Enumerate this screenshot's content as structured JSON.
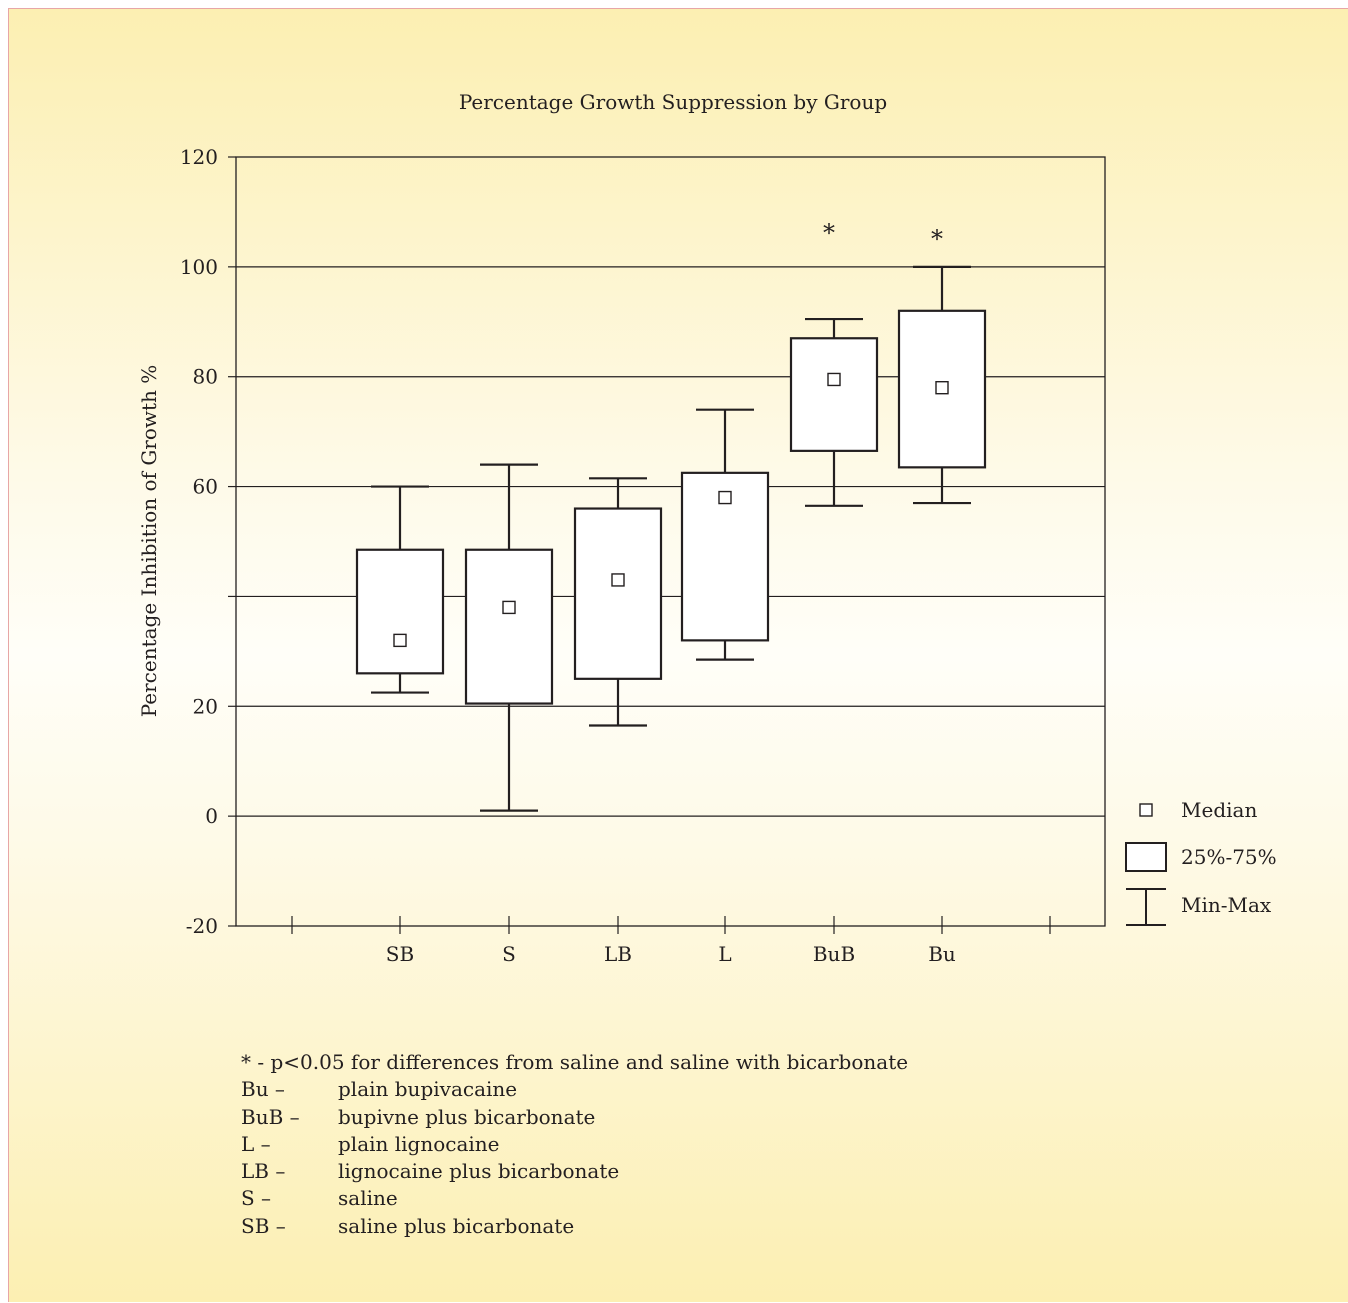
{
  "chart_data": {
    "type": "boxplot",
    "title": "Percentage Growth Suppression by Group",
    "ylabel": "Percentage Inhibition of Growth %",
    "xlabel": "",
    "ylim": [
      -20,
      120
    ],
    "yticks": [
      -20,
      0,
      20,
      40,
      60,
      80,
      100,
      120
    ],
    "ytick_labels": [
      "-20",
      "0",
      "20",
      "",
      "60",
      "80",
      "100",
      "120"
    ],
    "grid": true,
    "legend_position": "right",
    "categories": [
      "SB",
      "S",
      "LB",
      "L",
      "BuB",
      "Bu"
    ],
    "groups": [
      {
        "label": "SB",
        "min": 22.5,
        "q1": 26.0,
        "median": 32.0,
        "q3": 48.5,
        "max": 60.0,
        "significant": false
      },
      {
        "label": "S",
        "min": 1.0,
        "q1": 20.5,
        "median": 38.0,
        "q3": 48.5,
        "max": 64.0,
        "significant": false
      },
      {
        "label": "LB",
        "min": 16.5,
        "q1": 25.0,
        "median": 43.0,
        "q3": 56.0,
        "max": 61.5,
        "significant": false
      },
      {
        "label": "L",
        "min": 28.5,
        "q1": 32.0,
        "median": 58.0,
        "q3": 62.5,
        "max": 74.0,
        "significant": false
      },
      {
        "label": "BuB",
        "min": 56.5,
        "q1": 66.5,
        "median": 79.5,
        "q3": 87.0,
        "max": 90.5,
        "significant": true
      },
      {
        "label": "Bu",
        "min": 57.0,
        "q1": 63.5,
        "median": 78.0,
        "q3": 92.0,
        "max": 100.0,
        "significant": true
      }
    ],
    "significance_marker": "*",
    "legend": [
      {
        "symbol": "square",
        "label": "Median"
      },
      {
        "symbol": "box",
        "label": "25%-75%"
      },
      {
        "symbol": "whisker",
        "label": "Min-Max"
      }
    ]
  },
  "notes": {
    "significance": "* - p<0.05 for differences from saline and saline with bicarbonate",
    "abbreviations": [
      {
        "key": "Bu –",
        "value": "plain bupivacaine"
      },
      {
        "key": "BuB –",
        "value": "bupivne plus bicarbonate"
      },
      {
        "key": "L –",
        "value": "plain lignocaine"
      },
      {
        "key": "LB –",
        "value": "lignocaine plus bicarbonate"
      },
      {
        "key": "S –",
        "value": "saline"
      },
      {
        "key": "SB –",
        "value": "saline plus bicarbonate"
      }
    ]
  }
}
